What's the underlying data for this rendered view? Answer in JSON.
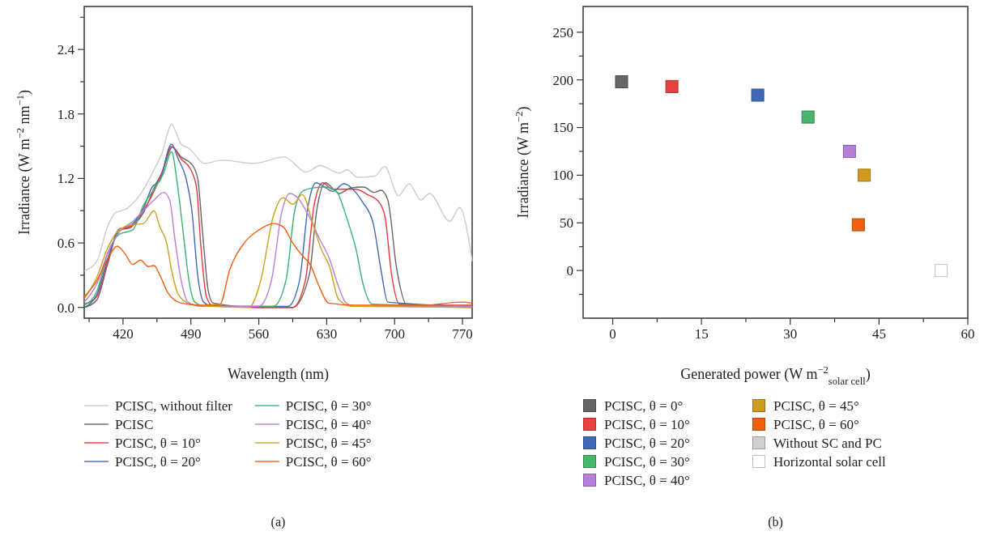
{
  "chart_data": [
    {
      "type": "line",
      "xlabel": "Wavelength (nm)",
      "ylabel": "Irradiance (W m$^{−2}$ nm$^{−1}$)",
      "annotations": [
        "(a)"
      ],
      "legend": "bottom",
      "xlim": [
        380,
        780
      ],
      "xticks": [
        {
          "value": 385,
          "label": null
        },
        420,
        {
          "value": 455,
          "label": null
        },
        490,
        {
          "value": 525,
          "label": null
        },
        560,
        {
          "value": 595,
          "label": null
        },
        630,
        {
          "value": 665,
          "label": null
        },
        700,
        {
          "value": 735,
          "label": null
        },
        770
      ],
      "ylim": [
        -0.1,
        2.8
      ],
      "yticks": [
        {
          "value": 0,
          "label": "0.0"
        },
        {
          "value": 0.3,
          "label": null
        },
        {
          "value": 0.6,
          "label": "0.6"
        },
        {
          "value": 0.9,
          "label": null
        },
        {
          "value": 1.2,
          "label": "1.2"
        },
        {
          "value": 1.5,
          "label": null
        },
        {
          "value": 1.8,
          "label": "1.8"
        },
        {
          "value": 2.1,
          "label": null
        },
        {
          "value": 2.4,
          "label": "2.4"
        },
        {
          "value": 2.7,
          "label": null
        }
      ],
      "series": [
        {
          "name": "PCISC, without filter",
          "color": "#cccccc",
          "x": [
            380,
            393,
            404,
            412,
            424,
            440,
            452,
            460,
            470,
            480,
            488,
            504,
            522,
            555,
            586,
            609,
            623,
            643,
            651,
            662,
            679,
            690,
            704,
            715,
            727,
            736,
            757,
            767,
            780
          ],
          "values": [
            0.34,
            0.43,
            0.75,
            0.88,
            0.92,
            1.08,
            1.28,
            1.43,
            1.7,
            1.52,
            1.48,
            1.34,
            1.37,
            1.34,
            1.4,
            1.26,
            1.32,
            1.25,
            1.28,
            1.21,
            1.22,
            1.31,
            1.04,
            1.15,
            1.0,
            1.06,
            0.8,
            0.93,
            0.43
          ]
        },
        {
          "name": "PCISC",
          "color": "#666666",
          "x": [
            380,
            393,
            404,
            416,
            427,
            441,
            454,
            460,
            471,
            480,
            491,
            497,
            502,
            508,
            513,
            560,
            595,
            612,
            620,
            629,
            637,
            643,
            654,
            668,
            679,
            686,
            693,
            702,
            713,
            780
          ],
          "values": [
            0.0,
            0.07,
            0.4,
            0.73,
            0.75,
            0.88,
            1.15,
            1.25,
            1.49,
            1.4,
            1.33,
            1.2,
            0.7,
            0.15,
            0.04,
            0.0,
            0.0,
            0.3,
            0.92,
            1.16,
            1.1,
            1.06,
            1.11,
            1.12,
            1.07,
            1.09,
            1.0,
            0.37,
            0.02,
            0.0
          ]
        },
        {
          "name": "PCISC, θ = 10°",
          "color": "#e8383d",
          "x": [
            380,
            393,
            404,
            416,
            427,
            441,
            454,
            460,
            470,
            480,
            490,
            496,
            500,
            506,
            512,
            560,
            595,
            608,
            617,
            626,
            636,
            646,
            660,
            672,
            684,
            690,
            697,
            705,
            780
          ],
          "values": [
            0.03,
            0.1,
            0.42,
            0.72,
            0.74,
            0.9,
            1.12,
            1.25,
            1.5,
            1.38,
            1.28,
            1.1,
            0.6,
            0.1,
            0.02,
            0.0,
            0.0,
            0.25,
            0.95,
            1.16,
            1.1,
            1.1,
            1.1,
            1.05,
            0.98,
            0.85,
            0.3,
            0.03,
            0.02
          ]
        },
        {
          "name": "PCISC, θ = 20°",
          "color": "#4169b8",
          "x": [
            380,
            393,
            404,
            416,
            430,
            441,
            450,
            458,
            470,
            477,
            485,
            491,
            497,
            503,
            512,
            590,
            602,
            611,
            619,
            628,
            636,
            648,
            657,
            667,
            678,
            686,
            693,
            780
          ],
          "values": [
            0.0,
            0.12,
            0.45,
            0.72,
            0.78,
            0.92,
            1.12,
            1.18,
            1.52,
            1.38,
            1.2,
            0.9,
            0.3,
            0.05,
            0.01,
            0.01,
            0.25,
            0.95,
            1.16,
            1.12,
            1.08,
            1.15,
            1.1,
            0.98,
            0.78,
            0.35,
            0.05,
            0.01
          ]
        },
        {
          "name": "PCISC, θ = 30°",
          "color": "#3cb46e",
          "x": [
            380,
            393,
            404,
            416,
            430,
            441,
            452,
            462,
            470,
            476,
            482,
            488,
            494,
            505,
            575,
            588,
            597,
            605,
            615,
            628,
            640,
            650,
            660,
            668,
            677,
            780
          ],
          "values": [
            0.02,
            0.15,
            0.5,
            0.68,
            0.72,
            0.95,
            1.1,
            1.25,
            1.45,
            1.15,
            0.7,
            0.25,
            0.05,
            0.01,
            0.01,
            0.25,
            0.9,
            1.08,
            1.11,
            1.12,
            1.08,
            0.85,
            0.55,
            0.2,
            0.03,
            0.01
          ]
        },
        {
          "name": "PCISC, θ = 40°",
          "color": "#b77fdb",
          "x": [
            380,
            393,
            404,
            416,
            430,
            441,
            452,
            462,
            468,
            474,
            480,
            487,
            500,
            560,
            573,
            584,
            592,
            600,
            610,
            622,
            633,
            642,
            650,
            660,
            780
          ],
          "values": [
            0.05,
            0.22,
            0.5,
            0.7,
            0.8,
            0.9,
            1.0,
            1.07,
            1.0,
            0.6,
            0.25,
            0.05,
            0.01,
            0.01,
            0.25,
            0.9,
            1.06,
            1.02,
            0.88,
            0.65,
            0.45,
            0.2,
            0.04,
            0.01,
            0.01
          ]
        },
        {
          "name": "PCISC, θ = 45°",
          "color": "#d19f1a",
          "x": [
            380,
            393,
            404,
            416,
            430,
            441,
            452,
            458,
            465,
            470,
            477,
            490,
            510,
            550,
            562,
            575,
            585,
            595,
            605,
            615,
            624,
            633,
            642,
            655,
            780
          ],
          "values": [
            0.08,
            0.28,
            0.55,
            0.72,
            0.77,
            0.78,
            0.9,
            0.75,
            0.6,
            0.35,
            0.12,
            0.03,
            0.01,
            0.0,
            0.25,
            0.85,
            1.02,
            0.96,
            1.05,
            0.8,
            0.55,
            0.38,
            0.08,
            0.01,
            0.0
          ]
        },
        {
          "name": "PCISC, θ = 60°",
          "color": "#f05f0c",
          "x": [
            380,
            393,
            404,
            414,
            422,
            430,
            438,
            446,
            452,
            458,
            466,
            480,
            500,
            520,
            530,
            545,
            560,
            575,
            585,
            595,
            605,
            613,
            622,
            632,
            660,
            730,
            768,
            780
          ],
          "values": [
            0.1,
            0.25,
            0.45,
            0.57,
            0.5,
            0.4,
            0.44,
            0.38,
            0.39,
            0.3,
            0.14,
            0.04,
            0.02,
            0.03,
            0.35,
            0.6,
            0.72,
            0.78,
            0.75,
            0.6,
            0.48,
            0.4,
            0.2,
            0.04,
            0.02,
            0.02,
            0.05,
            0.04
          ]
        }
      ]
    },
    {
      "type": "scatter",
      "xlabel": "Generated power (W m$^{−2}$$_{solar cell}$)",
      "ylabel": "Irradiance (W m$^{−2}$)",
      "annotations": [
        "(b)"
      ],
      "legend": "bottom",
      "marker": "square",
      "xlim": [
        -5,
        60
      ],
      "xticks": [
        0,
        {
          "value": 7.5,
          "label": null
        },
        15,
        {
          "value": 22.5,
          "label": null
        },
        30,
        {
          "value": 37.5,
          "label": null
        },
        45,
        {
          "value": 52.5,
          "label": null
        },
        60
      ],
      "ylim": [
        -50,
        277
      ],
      "yticks": [
        {
          "value": -25,
          "label": null
        },
        0,
        {
          "value": 25,
          "label": null
        },
        50,
        {
          "value": 75,
          "label": null
        },
        100,
        {
          "value": 125,
          "label": null
        },
        150,
        {
          "value": 175,
          "label": null
        },
        200,
        {
          "value": 225,
          "label": null
        },
        250
      ],
      "series": [
        {
          "name": "PCISC, θ = 0°",
          "color": "#666666",
          "x": [
            1.5
          ],
          "values": [
            198
          ]
        },
        {
          "name": "PCISC, θ = 10°",
          "color": "#e84040",
          "x": [
            10
          ],
          "values": [
            193
          ]
        },
        {
          "name": "PCISC, θ = 20°",
          "color": "#4169b8",
          "x": [
            24.5
          ],
          "values": [
            184
          ]
        },
        {
          "name": "PCISC, θ = 30°",
          "color": "#47b56a",
          "x": [
            33
          ],
          "values": [
            161
          ]
        },
        {
          "name": "PCISC, θ = 40°",
          "color": "#b77fdb",
          "x": [
            40
          ],
          "values": [
            125
          ]
        },
        {
          "name": "PCISC, θ = 45°",
          "color": "#cf9b1e",
          "x": [
            42.5
          ],
          "values": [
            100
          ]
        },
        {
          "name": "PCISC, θ = 60°",
          "color": "#ef5f0c",
          "x": [
            41.5
          ],
          "values": [
            48
          ]
        },
        {
          "name": "Without SC and PC",
          "color": "#d0d0d0",
          "x": [
            null
          ],
          "values": [
            null
          ]
        },
        {
          "name": "Horizontal solar cell",
          "color": "#ffffff",
          "x": [
            55.5
          ],
          "values": [
            0
          ]
        }
      ]
    }
  ]
}
